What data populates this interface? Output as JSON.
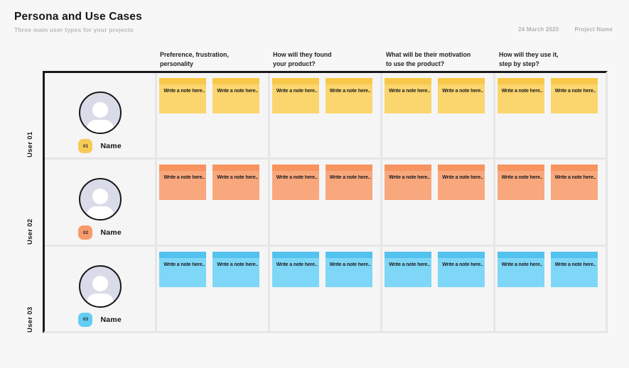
{
  "header": {
    "title": "Persona and Use Cases",
    "subtitle": "Three main user types for your projects",
    "date": "24 March 2020",
    "project_name": "Project Name"
  },
  "columns": [
    {
      "line1": "Preference, frustration,",
      "line2": "personality"
    },
    {
      "line1": "How will they found",
      "line2": "your product?"
    },
    {
      "line1": "What will be their motivation",
      "line2": "to use the product?"
    },
    {
      "line1": "How will they use it,",
      "line2": "step by step?"
    }
  ],
  "note_text": "Write a note here..",
  "rows": [
    {
      "user_label": "User 01",
      "badge": "01",
      "name": "Name",
      "note_body_color": "#FBD56E",
      "note_top_color": "#F8C84A",
      "badge_color": "#F8CB56"
    },
    {
      "user_label": "User 02",
      "badge": "02",
      "name": "Name",
      "note_body_color": "#F9A77C",
      "note_top_color": "#F7945F",
      "badge_color": "#F79B6C"
    },
    {
      "user_label": "User 03",
      "badge": "03",
      "name": "Name",
      "note_body_color": "#7FD7F8",
      "note_top_color": "#54C2EF",
      "badge_color": "#63CDF5"
    }
  ],
  "colors": {
    "page_bg": "#f7f7f7",
    "cell_bg": "#f5f5f5",
    "divider": "#e6e6e6",
    "frame_border": "#1a1a1c",
    "avatar_fill": "#d9dce8",
    "muted_text": "#b2b2b2"
  }
}
